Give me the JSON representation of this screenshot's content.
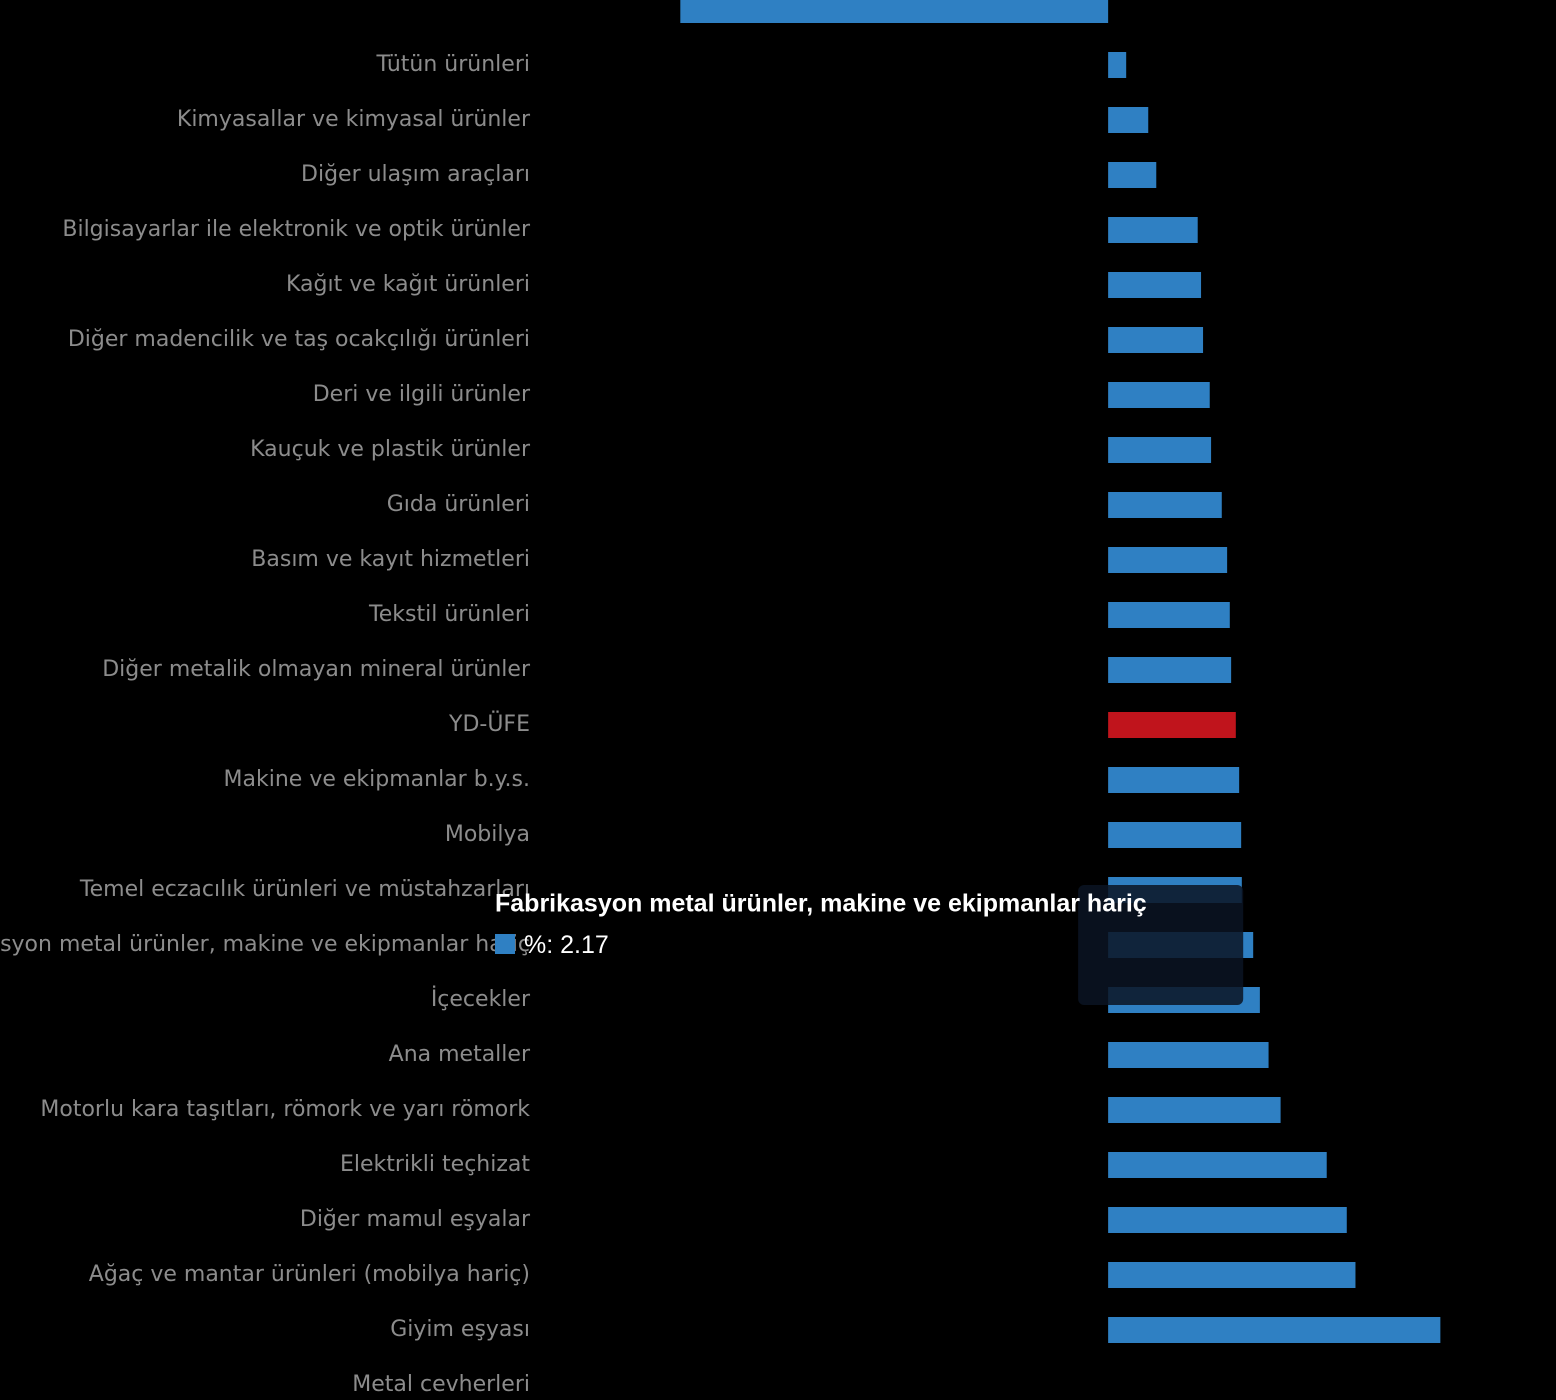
{
  "chart_data": {
    "type": "barh",
    "categories": [
      null,
      "Tütün ürünleri",
      "Kimyasallar ve kimyasal ürünler",
      "Diğer ulaşım araçları",
      "Bilgisayarlar ile elektronik ve optik ürünler",
      "Kağıt ve kağıt ürünleri",
      "Diğer madencilik ve taş ocakçılığı ürünleri",
      "Deri ve ilgili ürünler",
      "Kauçuk ve plastik ürünler",
      "Gıda ürünleri",
      "Basım ve kayıt hizmetleri",
      "Tekstil ürünleri",
      "Diğer metalik olmayan mineral ürünler",
      "YD-ÜFE",
      "Makine ve ekipmanlar b.y.s.",
      "Mobilya",
      "Temel eczacılık ürünleri ve müstahzarları",
      "Fabrikasyon metal ürünler, makine ve ekipmanlar hariç",
      "İçecekler",
      "Ana metaller",
      "Motorlu kara taşıtları, römork ve yarı römork",
      "Elektrikli teçhizat",
      "Diğer mamul eşyalar",
      "Ağaç ve mantar ürünleri (mobilya hariç)",
      "Giyim eşyası",
      "Metal cevherleri"
    ],
    "series": [
      {
        "name": "%",
        "color": "#2f80c3",
        "values": [
          -6.4,
          0.27,
          0.6,
          0.72,
          1.34,
          1.39,
          1.42,
          1.52,
          1.54,
          1.7,
          1.78,
          1.82,
          1.84,
          1.91,
          1.96,
          1.99,
          2.0,
          2.17,
          2.27,
          2.4,
          2.58,
          3.27,
          3.57,
          3.7,
          4.97,
          null
        ]
      }
    ],
    "highlight_category": "YD-ÜFE",
    "highlight_color": "#c0141c",
    "tooltip": "Fabrikasyon metal ürünler, makine ve ekipmanlar hariç",
    "xlim": [
      -8.2,
      6.7
    ]
  }
}
